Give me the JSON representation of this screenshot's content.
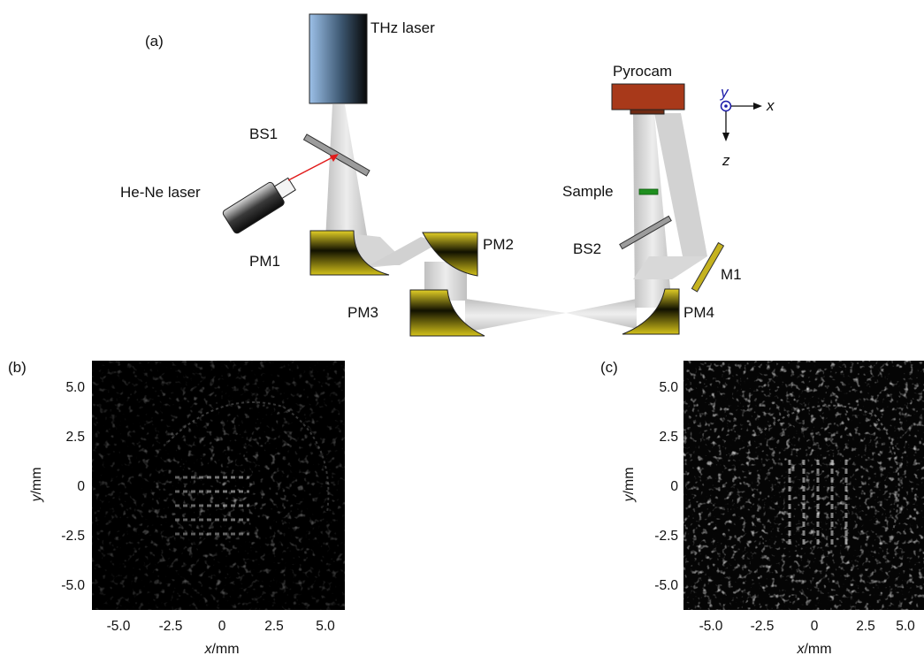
{
  "figure": {
    "panel_a_label": "(a)",
    "panel_b_label": "(b)",
    "panel_c_label": "(c)"
  },
  "setup": {
    "thz_laser": "THz laser",
    "hene_laser": "He-Ne laser",
    "bs1": "BS1",
    "pm1": "PM1",
    "pm2": "PM2",
    "pm3": "PM3",
    "pm4": "PM4",
    "pyrocam": "Pyrocam",
    "sample": "Sample",
    "bs2": "BS2",
    "m1": "M1",
    "axis_x": "x",
    "axis_y": "y",
    "axis_z": "z"
  },
  "images": {
    "xlabel_var": "x",
    "xlabel_unit": "/mm",
    "ylabel_var": "y",
    "ylabel_unit": "/mm",
    "ticks": [
      "-5.0",
      "-2.5",
      "0",
      "2.5",
      "5.0"
    ],
    "yticks": [
      "5.0",
      "2.5",
      "0",
      "-2.5",
      "-5.0"
    ]
  },
  "colors": {
    "thz_laser_gradient": [
      "#8fb6e2",
      "#0a0a0a"
    ],
    "mirror_gold": "#d8c21e",
    "pyrocam": "#a8391a",
    "sample": "#1f8f1f",
    "hene_beam": "#e11b1b",
    "axis_marker": "#1a1aa8"
  }
}
